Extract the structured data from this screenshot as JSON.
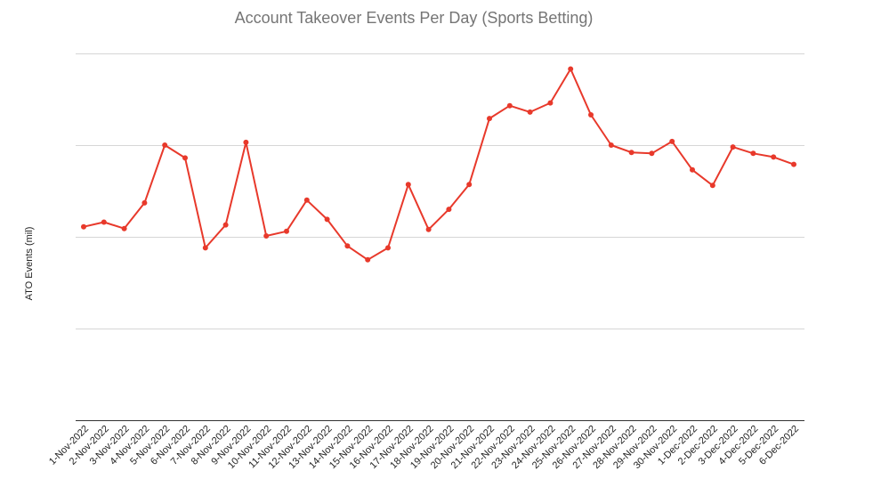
{
  "chart_data": {
    "type": "line",
    "title": "Account Takeover Events Per Day (Sports Betting)",
    "xlabel": "",
    "ylabel": "ATO Events (mil)",
    "ylim": [
      0,
      4
    ],
    "y_tick_labels": [],
    "grid": true,
    "legend": "none",
    "line_color": "#e8392b",
    "gridline_color": "#d6d6d6",
    "axis_color": "#333333",
    "x": [
      "1-Nov-2022",
      "2-Nov-2022",
      "3-Nov-2022",
      "4-Nov-2022",
      "5-Nov-2022",
      "6-Nov-2022",
      "7-Nov-2022",
      "8-Nov-2022",
      "9-Nov-2022",
      "10-Nov-2022",
      "11-Nov-2022",
      "12-Nov-2022",
      "13-Nov-2022",
      "14-Nov-2022",
      "15-Nov-2022",
      "16-Nov-2022",
      "17-Nov-2022",
      "18-Nov-2022",
      "19-Nov-2022",
      "20-Nov-2022",
      "21-Nov-2022",
      "22-Nov-2022",
      "23-Nov-2022",
      "24-Nov-2022",
      "25-Nov-2022",
      "26-Nov-2022",
      "27-Nov-2022",
      "28-Nov-2022",
      "29-Nov-2022",
      "30-Nov-2022",
      "1-Dec-2022",
      "2-Dec-2022",
      "3-Dec-2022",
      "4-Dec-2022",
      "5-Dec-2022",
      "6-Dec-2022"
    ],
    "series": [
      {
        "values": [
          2.11,
          2.16,
          2.09,
          2.37,
          3.0,
          2.86,
          1.88,
          2.13,
          3.03,
          2.01,
          2.06,
          2.4,
          2.19,
          1.9,
          1.75,
          1.88,
          2.57,
          2.08,
          2.3,
          2.57,
          3.29,
          3.43,
          3.36,
          3.46,
          3.83,
          3.33,
          3.0,
          2.92,
          2.91,
          3.04,
          2.73,
          2.56,
          2.98,
          2.91,
          2.87,
          2.79
        ]
      }
    ]
  }
}
